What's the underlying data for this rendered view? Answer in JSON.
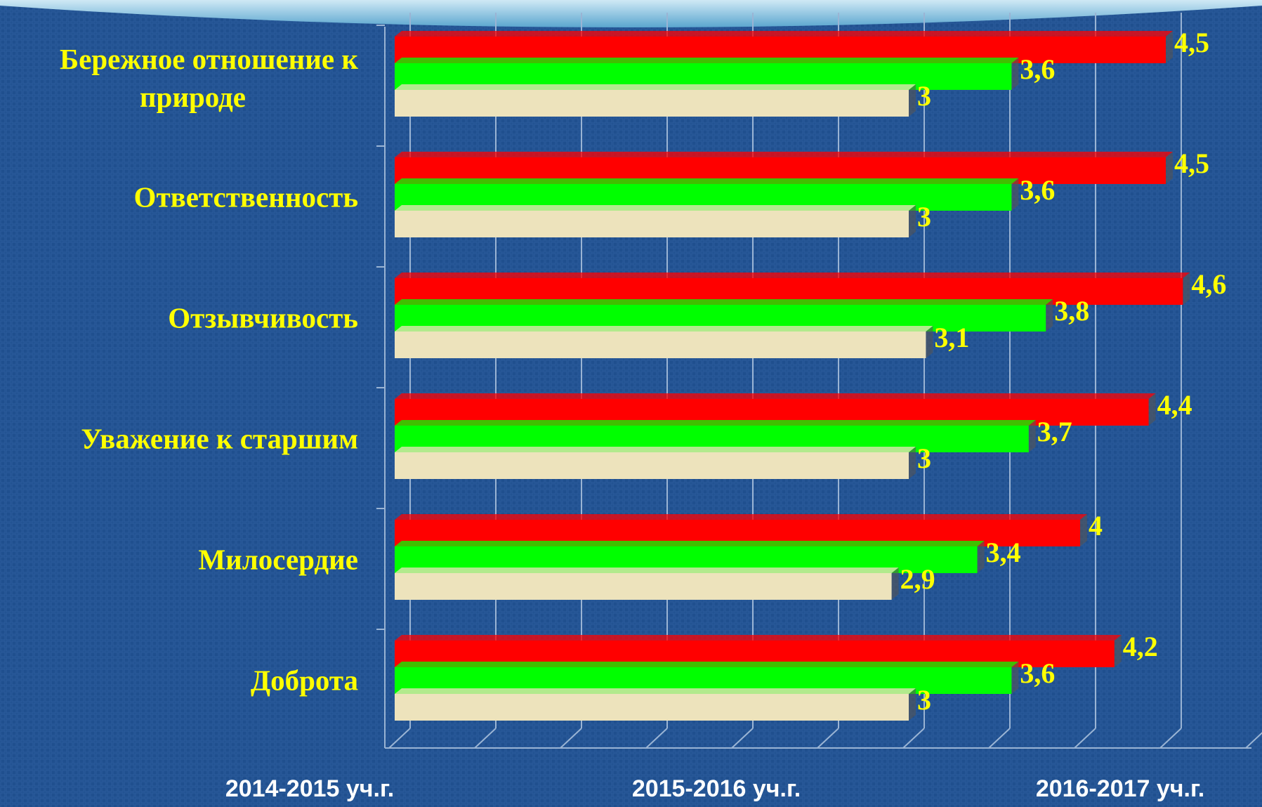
{
  "chart_data": {
    "type": "hbar",
    "categories": [
      "Бережное отношение к природе",
      "Ответственность",
      "Отзывчивость",
      "Уважение к старшим",
      "Милосердие",
      "Доброта"
    ],
    "series": [
      {
        "name": "2014-2015 уч.г.",
        "color": "#ede3bc",
        "values": [
          3,
          3,
          3.1,
          3,
          2.9,
          3
        ],
        "value_labels": [
          "3",
          "3",
          "3,1",
          "3",
          "2,9",
          "3"
        ]
      },
      {
        "name": "2015-2016 уч.г.",
        "color": "#00ff00",
        "values": [
          3.6,
          3.6,
          3.8,
          3.7,
          3.4,
          3.6
        ],
        "value_labels": [
          "3,6",
          "3,6",
          "3,8",
          "3,7",
          "3,4",
          "3,6"
        ]
      },
      {
        "name": "2016-2017 уч.г.",
        "color": "#ff0000",
        "values": [
          4.5,
          4.5,
          4.6,
          4.4,
          4,
          4.2
        ],
        "value_labels": [
          "4,5",
          "4,5",
          "4,6",
          "4,4",
          "4",
          "4,2"
        ]
      }
    ],
    "xlim": [
      0,
      5
    ],
    "xticks": [
      0,
      0.5,
      1,
      1.5,
      2,
      2.5,
      3,
      3.5,
      4,
      4.5,
      5
    ],
    "grid": true
  }
}
